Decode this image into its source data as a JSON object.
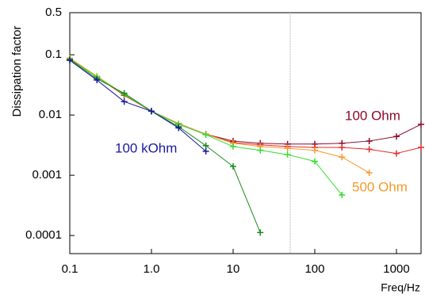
{
  "chart_data": {
    "type": "line",
    "x_label": "Freq/Hz",
    "y_label": "Dissipation factor",
    "xscale": "log",
    "yscale": "log",
    "xlim": [
      0.1,
      2000
    ],
    "ylim": [
      5e-05,
      0.5
    ],
    "xticks": [
      0.1,
      {
        "value": 1,
        "label": "1.0"
      },
      10,
      100,
      1000
    ],
    "yticks": [
      0.5,
      0.1,
      0.01,
      0.001,
      0.0001
    ],
    "vline_x": 50,
    "series": [
      {
        "name": "100 Ohm",
        "color": "#8b0a2a",
        "x": [
          0.1,
          0.215,
          0.464,
          1,
          2.15,
          4.64,
          10,
          21.5,
          46.4,
          100,
          215,
          464,
          1000,
          2000
        ],
        "values": [
          0.086,
          0.043,
          0.0213,
          0.0116,
          0.0072,
          0.0048,
          0.0037,
          0.0034,
          0.0033,
          0.0033,
          0.0034,
          0.0037,
          0.0044,
          0.007
        ]
      },
      {
        "color": "#e02a2a",
        "x": [
          0.1,
          0.215,
          0.464,
          1,
          2.15,
          4.64,
          10,
          21.5,
          46.4,
          100,
          215,
          464,
          1000,
          2000
        ],
        "values": [
          0.086,
          0.043,
          0.0213,
          0.0116,
          0.0072,
          0.0048,
          0.0035,
          0.0032,
          0.003,
          0.0029,
          0.0029,
          0.0027,
          0.0023,
          0.0029
        ]
      },
      {
        "name": "500 Ohm",
        "color": "#f39a2a",
        "x": [
          0.1,
          0.215,
          0.464,
          1,
          2.15,
          4.64,
          10,
          21.5,
          46.4,
          100,
          215,
          464
        ],
        "values": [
          0.088,
          0.044,
          0.022,
          0.0116,
          0.0072,
          0.0048,
          0.0034,
          0.003,
          0.0028,
          0.0026,
          0.002,
          0.0011
        ]
      },
      {
        "color": "#33dd33",
        "x": [
          0.1,
          0.215,
          0.464,
          1,
          2.15,
          4.64,
          10,
          21.5,
          46.4,
          100,
          215
        ],
        "values": [
          0.085,
          0.043,
          0.022,
          0.0116,
          0.007,
          0.0047,
          0.003,
          0.0026,
          0.0022,
          0.0017,
          0.00047
        ]
      },
      {
        "color": "#1a8a1a",
        "x": [
          0.1,
          0.215,
          0.464,
          1,
          2.15,
          4.64,
          10,
          21.5
        ],
        "values": [
          0.084,
          0.04,
          0.023,
          0.0116,
          0.0064,
          0.0031,
          0.0014,
          0.000112
        ]
      },
      {
        "name": "100 kOhm",
        "color": "#1a1a9a",
        "x": [
          0.1,
          0.215,
          0.464,
          1,
          2.15,
          4.64
        ],
        "values": [
          0.081,
          0.038,
          0.0167,
          0.0116,
          0.0061,
          0.0025
        ]
      }
    ]
  }
}
